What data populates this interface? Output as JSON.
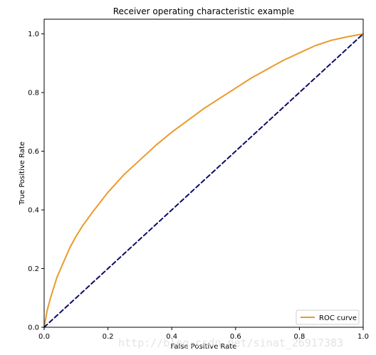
{
  "chart_data": {
    "type": "line",
    "title": "Receiver operating characteristic example",
    "xlabel": "False Positive Rate",
    "ylabel": "True Positive Rate",
    "xlim": [
      0.0,
      1.0
    ],
    "ylim": [
      0.0,
      1.05
    ],
    "x_ticks": [
      "0.0",
      "0.2",
      "0.4",
      "0.6",
      "0.8",
      "1.0"
    ],
    "y_ticks": [
      "0.0",
      "0.2",
      "0.4",
      "0.6",
      "0.8",
      "1.0"
    ],
    "grid": false,
    "legend_position": "lower-right",
    "series": [
      {
        "name": "ROC curve",
        "color": "#ea9a2a",
        "line_style": "solid",
        "x": [
          0.0,
          0.01,
          0.02,
          0.04,
          0.06,
          0.08,
          0.1,
          0.12,
          0.15,
          0.2,
          0.25,
          0.3,
          0.35,
          0.4,
          0.45,
          0.5,
          0.55,
          0.6,
          0.65,
          0.7,
          0.75,
          0.8,
          0.85,
          0.9,
          0.95,
          1.0
        ],
        "y": [
          0.0,
          0.06,
          0.1,
          0.17,
          0.22,
          0.27,
          0.31,
          0.345,
          0.39,
          0.46,
          0.52,
          0.57,
          0.62,
          0.665,
          0.705,
          0.745,
          0.78,
          0.815,
          0.85,
          0.88,
          0.91,
          0.935,
          0.96,
          0.978,
          0.99,
          1.0
        ]
      },
      {
        "color": "#0b0b66",
        "line_style": "dashed",
        "x": [
          0.0,
          1.0
        ],
        "y": [
          0.0,
          1.0
        ]
      }
    ]
  },
  "watermark": "http://blog.csdn.net/sinat_26917383"
}
